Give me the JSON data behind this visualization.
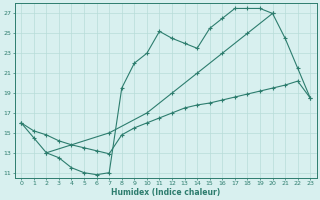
{
  "line1_x": [
    0,
    1,
    2,
    3,
    4,
    5,
    6,
    7,
    8,
    9,
    10,
    11,
    12,
    13,
    14,
    15,
    16,
    17,
    18,
    19,
    20,
    21,
    22,
    23
  ],
  "line1_y": [
    16,
    14.5,
    13.0,
    12.5,
    11.5,
    11.0,
    10.8,
    11.0,
    19.5,
    22.0,
    23.0,
    25.2,
    24.5,
    24.0,
    23.5,
    25.5,
    26.5,
    27.5,
    27.5,
    27.5,
    27.0,
    24.5,
    21.5,
    18.5
  ],
  "line2_x": [
    0,
    1,
    2,
    3,
    4,
    5,
    6,
    7,
    8,
    9,
    10,
    11,
    12,
    13,
    14,
    15,
    16,
    17,
    18,
    19,
    20,
    21,
    22,
    23
  ],
  "line2_y": [
    16.0,
    15.2,
    14.8,
    14.2,
    13.8,
    13.5,
    13.2,
    12.9,
    14.8,
    15.5,
    16.0,
    16.5,
    17.0,
    17.5,
    17.8,
    18.0,
    18.3,
    18.6,
    18.9,
    19.2,
    19.5,
    19.8,
    20.2,
    18.5
  ],
  "line3_x": [
    2,
    7,
    10,
    12,
    14,
    16,
    18,
    20
  ],
  "line3_y": [
    13.0,
    15.0,
    17.0,
    19.0,
    21.0,
    23.0,
    25.0,
    27.0
  ],
  "color": "#2d7d6e",
  "bg_color": "#d8f0ef",
  "grid_color": "#b8ddd9",
  "xlabel": "Humidex (Indice chaleur)",
  "ylim": [
    10.5,
    28.0
  ],
  "xlim": [
    -0.5,
    23.5
  ],
  "yticks": [
    11,
    13,
    15,
    17,
    19,
    21,
    23,
    25,
    27
  ],
  "xticks": [
    0,
    1,
    2,
    3,
    4,
    5,
    6,
    7,
    8,
    9,
    10,
    11,
    12,
    13,
    14,
    15,
    16,
    17,
    18,
    19,
    20,
    21,
    22,
    23
  ],
  "xtick_labels": [
    "0",
    "1",
    "2",
    "3",
    "4",
    "5",
    "6",
    "7",
    "8",
    "9",
    "10",
    "11",
    "12",
    "13",
    "14",
    "15",
    "16",
    "17",
    "18",
    "19",
    "20",
    "21",
    "22",
    "23"
  ]
}
